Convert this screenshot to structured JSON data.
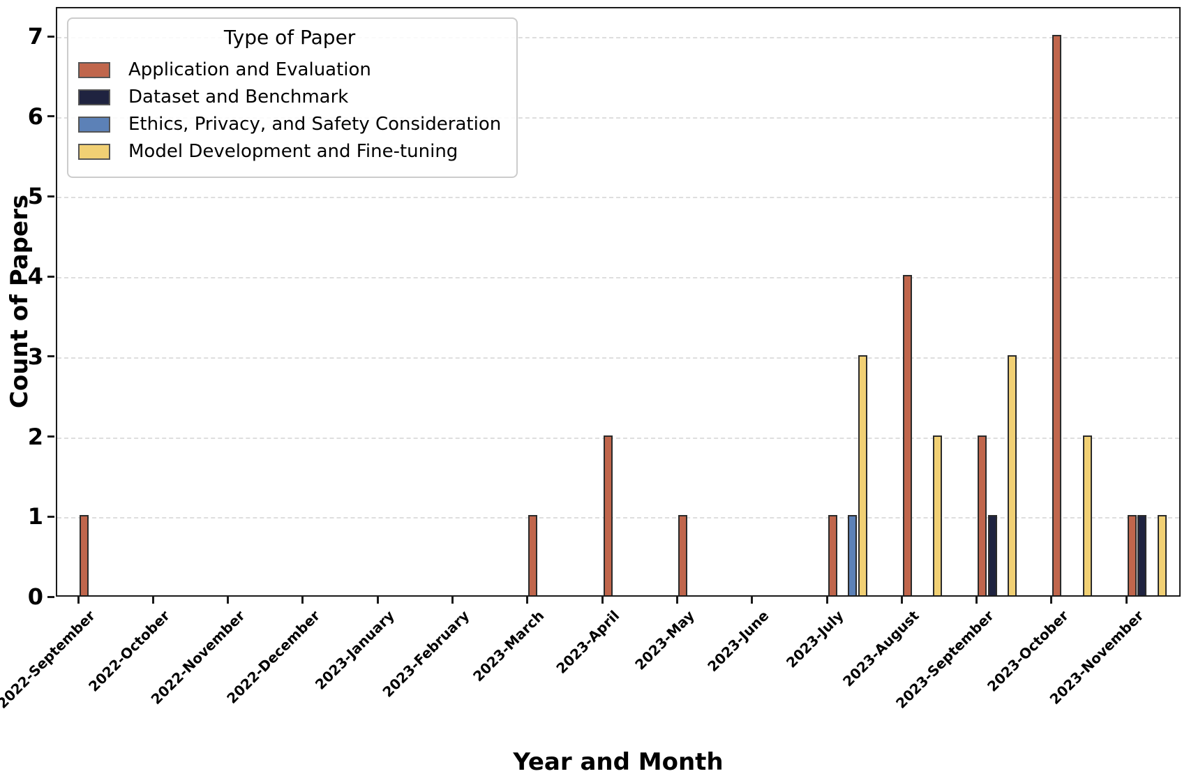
{
  "chart_data": {
    "type": "bar",
    "title": "",
    "xlabel": "Year and Month",
    "ylabel": "Count of Papers",
    "ylim": [
      0,
      7
    ],
    "yticks": [
      0,
      1,
      2,
      3,
      4,
      5,
      6,
      7
    ],
    "grid": "horizontal-dashed",
    "legend_title": "Type of Paper",
    "legend_position": "upper-left",
    "categories": [
      "2022-September",
      "2022-October",
      "2022-November",
      "2022-December",
      "2023-January",
      "2023-February",
      "2023-March",
      "2023-April",
      "2023-May",
      "2023-June",
      "2023-July",
      "2023-August",
      "2023-September",
      "2023-October",
      "2023-November"
    ],
    "series": [
      {
        "name": "Application and Evaluation",
        "color": "#c0664c",
        "values": [
          1,
          0,
          0,
          0,
          0,
          0,
          1,
          2,
          1,
          0,
          1,
          4,
          2,
          7,
          1
        ]
      },
      {
        "name": "Dataset and Benchmark",
        "color": "#1f2340",
        "values": [
          0,
          0,
          0,
          0,
          0,
          0,
          0,
          0,
          0,
          0,
          0,
          0,
          1,
          0,
          1
        ]
      },
      {
        "name": "Ethics, Privacy, and Safety Consideration",
        "color": "#5c81b7",
        "values": [
          0,
          0,
          0,
          0,
          0,
          0,
          0,
          0,
          0,
          0,
          1,
          0,
          0,
          0,
          0
        ]
      },
      {
        "name": "Model Development and Fine-tuning",
        "color": "#f1d074",
        "values": [
          0,
          0,
          0,
          0,
          0,
          0,
          0,
          0,
          0,
          0,
          3,
          2,
          3,
          2,
          1
        ]
      }
    ]
  }
}
